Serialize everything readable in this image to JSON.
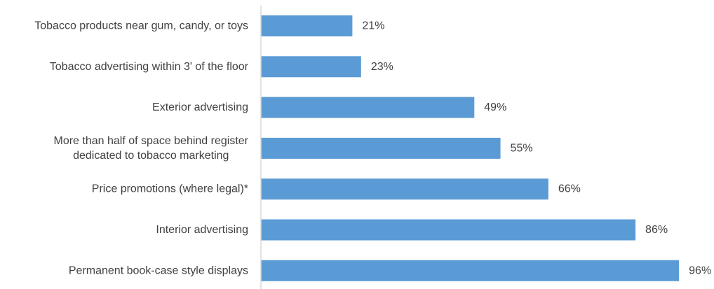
{
  "chart_data": {
    "type": "bar",
    "orientation": "horizontal",
    "categories": [
      [
        "Tobacco products near gum, candy, or toys"
      ],
      [
        "Tobacco advertising within 3' of the floor"
      ],
      [
        "Exterior advertising"
      ],
      [
        "More than half of space behind register",
        "dedicated to tobacco marketing"
      ],
      [
        "Price promotions (where legal)*"
      ],
      [
        "Interior advertising"
      ],
      [
        "Permanent book-case style displays"
      ]
    ],
    "values": [
      21,
      23,
      49,
      55,
      66,
      86,
      96
    ],
    "value_labels": [
      "21%",
      "23%",
      "49%",
      "55%",
      "66%",
      "86%",
      "96%"
    ],
    "unit": "%",
    "xlim": [
      0,
      100
    ],
    "grid": false,
    "legend": "none",
    "bar_color": "#5b9bd5",
    "axis_color": "#d9d9d9",
    "text_color": "#404040"
  }
}
